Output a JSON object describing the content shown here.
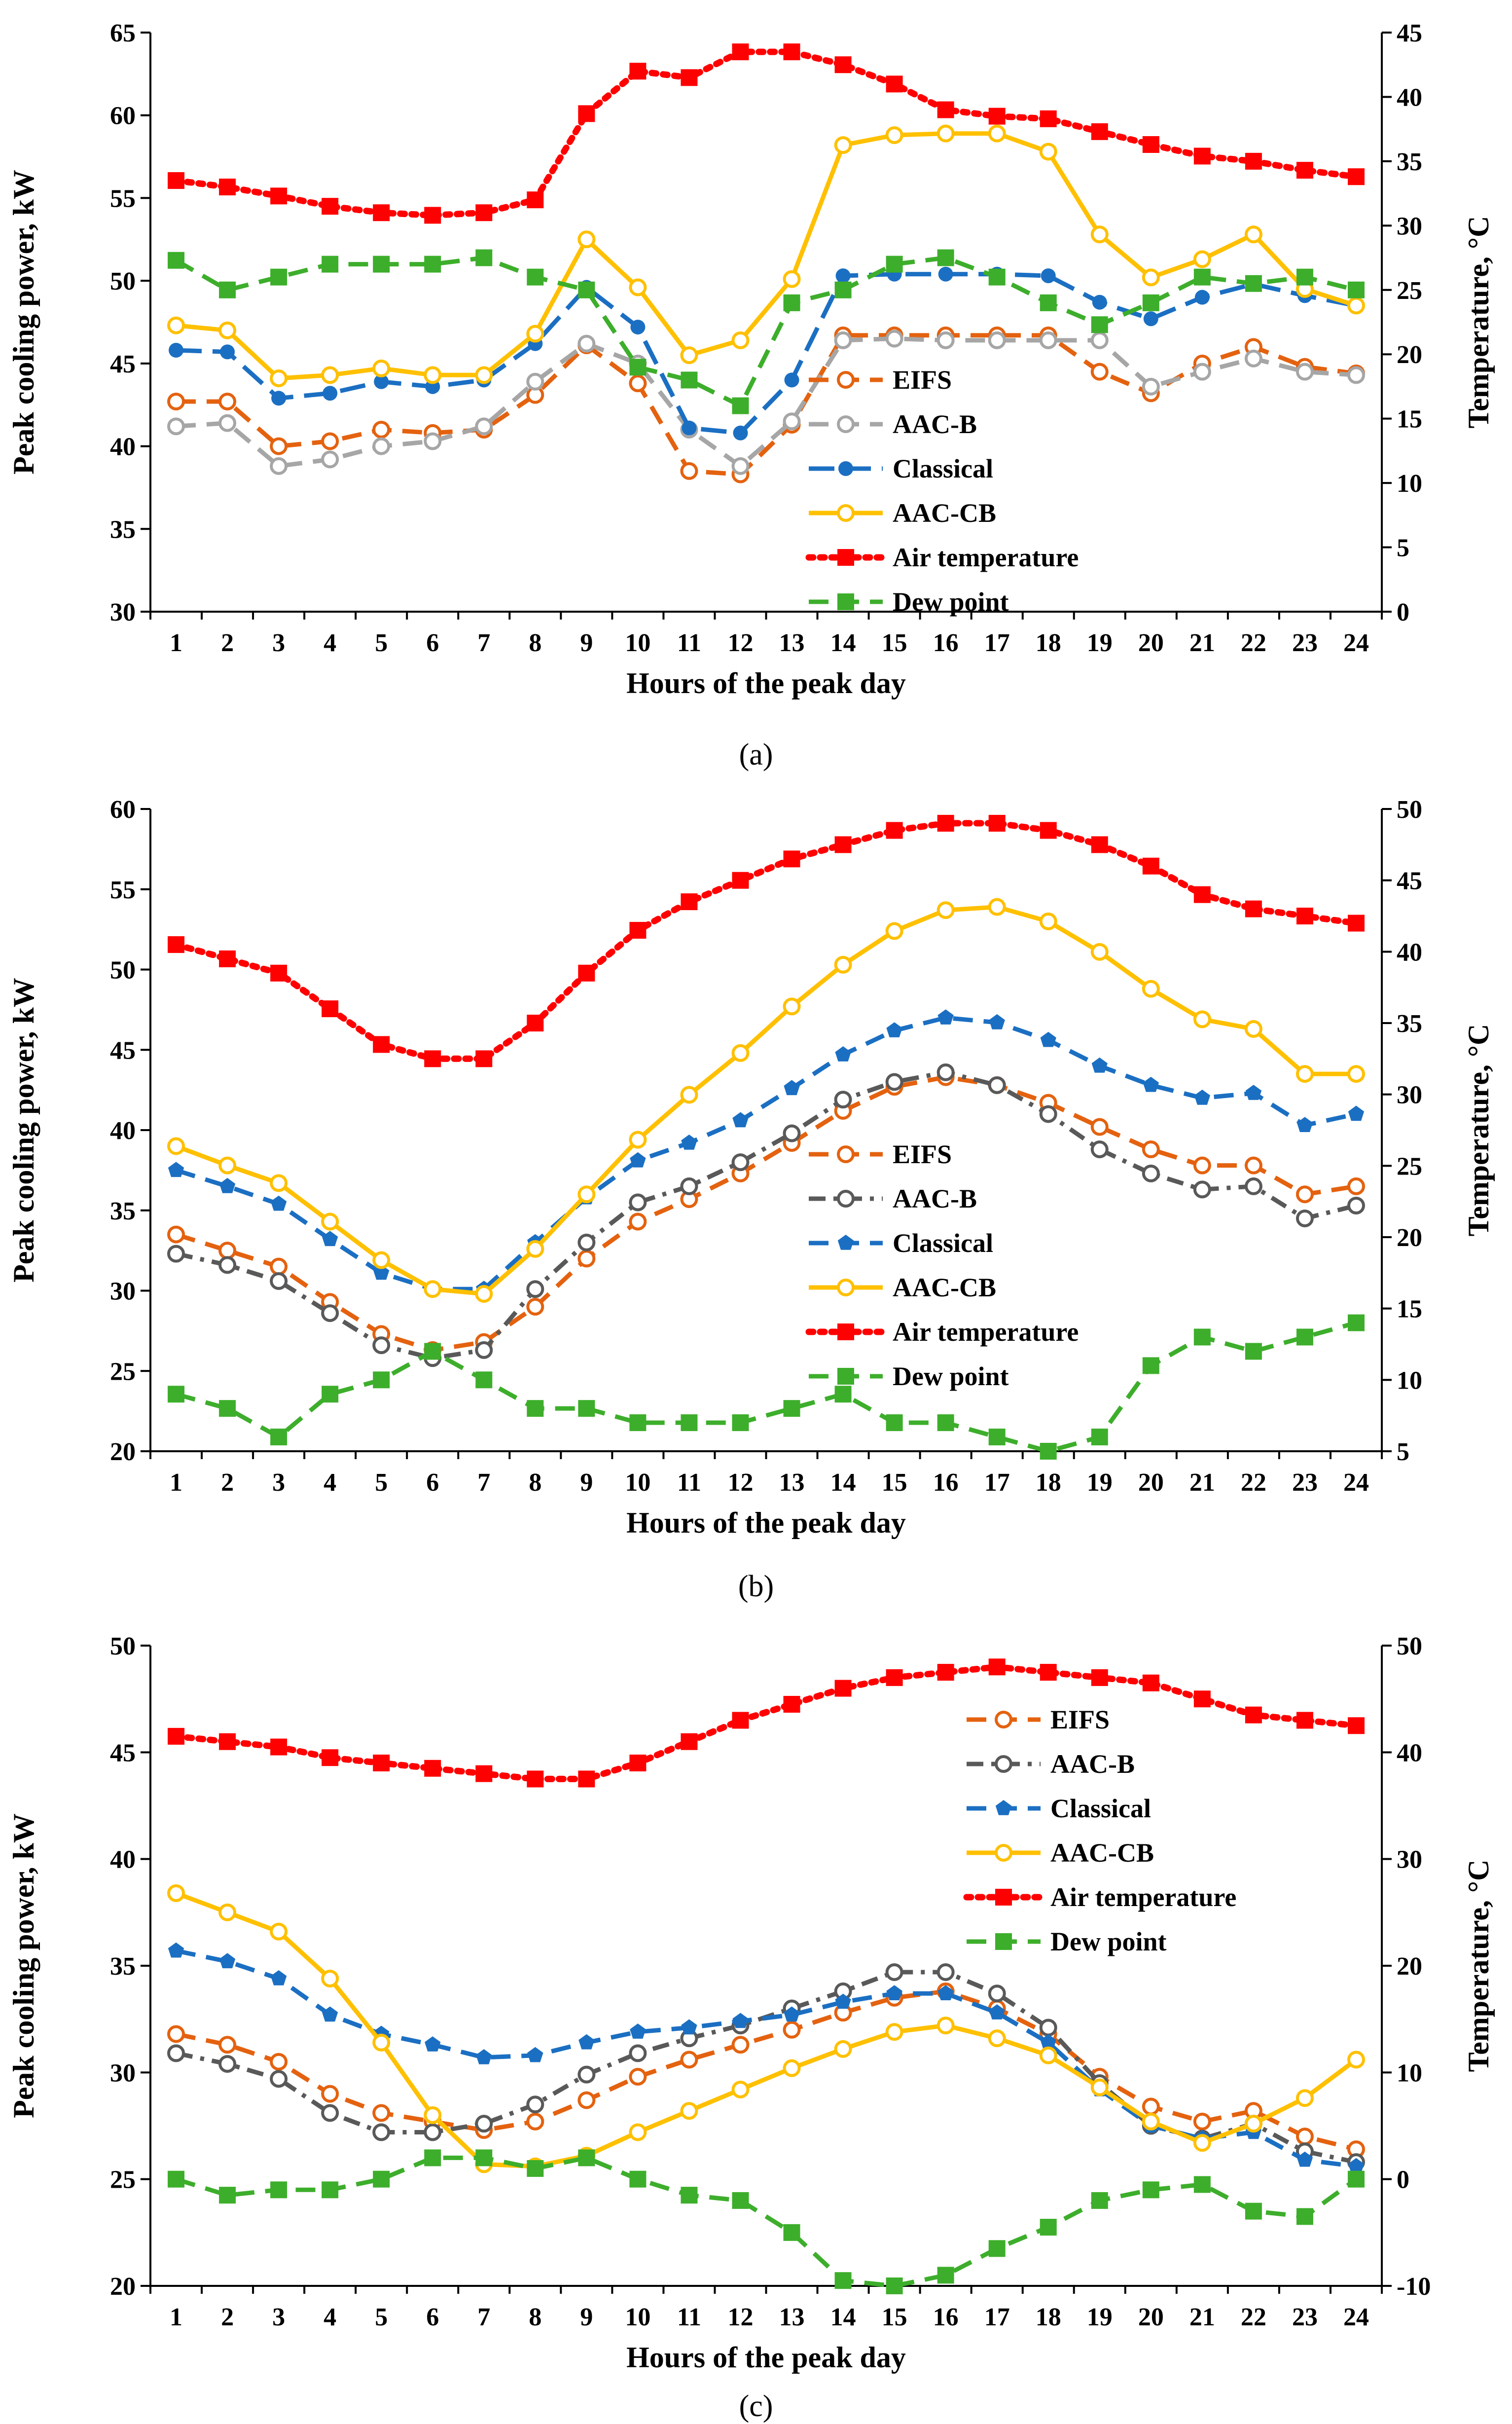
{
  "chart_data": [
    {
      "type": "line",
      "panel_label": "(a)",
      "x": [
        1,
        2,
        3,
        4,
        5,
        6,
        7,
        8,
        9,
        10,
        11,
        12,
        13,
        14,
        15,
        16,
        17,
        18,
        19,
        20,
        21,
        22,
        23,
        24
      ],
      "xlabel": "Hours of the peak day",
      "ylabel": "Peak cooling power, kW",
      "y2label": "Temperature, °C",
      "ylim": [
        30,
        65
      ],
      "y2lim": [
        0,
        45
      ],
      "yticks": [
        30,
        35,
        40,
        45,
        50,
        55,
        60,
        65
      ],
      "y2ticks": [
        0,
        5,
        10,
        15,
        20,
        25,
        30,
        35,
        40,
        45
      ],
      "grid": false,
      "legend": "center-right",
      "series": [
        {
          "name": "EIFS",
          "axis": "left",
          "color": "#E4620F",
          "dash": "dash",
          "marker": "circle-open",
          "values": [
            42.7,
            42.7,
            40.0,
            40.3,
            41.0,
            40.8,
            41.0,
            43.1,
            46.1,
            43.8,
            38.5,
            38.3,
            41.3,
            46.7,
            46.7,
            46.7,
            46.7,
            46.7,
            44.5,
            43.2,
            45.0,
            46.0,
            44.8,
            44.4
          ]
        },
        {
          "name": "AAC-B",
          "axis": "left",
          "color": "#A6A6A6",
          "dash": "dash",
          "marker": "circle-open",
          "values": [
            41.2,
            41.4,
            38.8,
            39.2,
            40.0,
            40.3,
            41.2,
            43.9,
            46.2,
            45.0,
            41.0,
            38.8,
            41.5,
            46.4,
            46.5,
            46.4,
            46.4,
            46.4,
            46.4,
            43.6,
            44.5,
            45.3,
            44.5,
            44.3
          ]
        },
        {
          "name": "Classical",
          "axis": "left",
          "color": "#1B6FC2",
          "dash": "longdash",
          "marker": "circle-filled",
          "values": [
            45.8,
            45.7,
            42.9,
            43.2,
            43.9,
            43.6,
            44.0,
            46.2,
            49.6,
            47.2,
            41.1,
            40.8,
            44.0,
            50.3,
            50.4,
            50.4,
            50.4,
            50.3,
            48.7,
            47.7,
            49.0,
            49.8,
            49.1,
            48.5
          ]
        },
        {
          "name": "AAC-CB",
          "axis": "left",
          "color": "#FFC000",
          "dash": "solid",
          "marker": "circle-open",
          "values": [
            47.3,
            47.0,
            44.1,
            44.3,
            44.7,
            44.3,
            44.3,
            46.8,
            52.5,
            49.6,
            45.5,
            46.4,
            50.1,
            58.2,
            58.8,
            58.9,
            58.9,
            57.8,
            52.8,
            50.2,
            51.3,
            52.8,
            49.5,
            48.5
          ]
        },
        {
          "name": "Air temperature",
          "axis": "right",
          "color": "#FF0000",
          "dash": "dot",
          "marker": "square",
          "values": [
            33.5,
            33.0,
            32.3,
            31.5,
            31.0,
            30.8,
            31.0,
            32.0,
            38.7,
            42.0,
            41.5,
            43.5,
            43.5,
            42.5,
            41.0,
            39.0,
            38.5,
            38.3,
            37.3,
            36.3,
            35.4,
            35.0,
            34.3,
            33.8
          ]
        },
        {
          "name": "Dew point",
          "axis": "right",
          "color": "#3DAE2B",
          "dash": "dash",
          "marker": "square",
          "values": [
            27.3,
            25.0,
            26.0,
            27.0,
            27.0,
            27.0,
            27.5,
            26.0,
            25.0,
            19.0,
            18.0,
            16.0,
            24.0,
            25.0,
            27.0,
            27.5,
            26.0,
            24.0,
            22.3,
            24.0,
            26.0,
            25.5,
            26.0,
            25.0
          ]
        }
      ]
    },
    {
      "type": "line",
      "panel_label": "(b)",
      "x": [
        1,
        2,
        3,
        4,
        5,
        6,
        7,
        8,
        9,
        10,
        11,
        12,
        13,
        14,
        15,
        16,
        17,
        18,
        19,
        20,
        21,
        22,
        23,
        24
      ],
      "xlabel": "Hours of the peak day",
      "ylabel": "Peak cooling power, kW",
      "y2label": "Temperature, °C",
      "ylim": [
        20,
        60
      ],
      "y2lim": [
        5,
        50
      ],
      "yticks": [
        20,
        25,
        30,
        35,
        40,
        45,
        50,
        55,
        60
      ],
      "y2ticks": [
        5,
        10,
        15,
        20,
        25,
        30,
        35,
        40,
        45,
        50
      ],
      "grid": false,
      "legend": "center-right",
      "series": [
        {
          "name": "EIFS",
          "axis": "left",
          "color": "#E4620F",
          "dash": "dash",
          "marker": "circle-open",
          "values": [
            33.5,
            32.5,
            31.5,
            29.3,
            27.3,
            26.3,
            26.8,
            29.0,
            32.0,
            34.3,
            35.7,
            37.3,
            39.2,
            41.2,
            42.7,
            43.3,
            42.8,
            41.7,
            40.2,
            38.8,
            37.8,
            37.8,
            36.0,
            36.5
          ]
        },
        {
          "name": "AAC-B",
          "axis": "left",
          "color": "#595959",
          "dash": "dashdot",
          "marker": "circle-open",
          "values": [
            32.3,
            31.6,
            30.6,
            28.6,
            26.6,
            25.8,
            26.3,
            30.1,
            33.0,
            35.5,
            36.5,
            38.0,
            39.8,
            41.9,
            43.0,
            43.6,
            42.8,
            41.0,
            38.8,
            37.3,
            36.3,
            36.5,
            34.5,
            35.3
          ]
        },
        {
          "name": "Classical",
          "axis": "left",
          "color": "#1B6FC2",
          "dash": "dash",
          "marker": "pentagon",
          "values": [
            37.5,
            36.5,
            35.4,
            33.2,
            31.1,
            30.1,
            30.1,
            33.0,
            35.8,
            38.1,
            39.2,
            40.6,
            42.6,
            44.7,
            46.2,
            47.0,
            46.7,
            45.6,
            44.0,
            42.8,
            42.0,
            42.3,
            40.3,
            41.0
          ]
        },
        {
          "name": "AAC-CB",
          "axis": "left",
          "color": "#FFC000",
          "dash": "solid",
          "marker": "circle-open",
          "values": [
            39.0,
            37.8,
            36.7,
            34.3,
            31.9,
            30.1,
            29.8,
            32.6,
            36.0,
            39.4,
            42.2,
            44.8,
            47.7,
            50.3,
            52.4,
            53.7,
            53.9,
            53.0,
            51.1,
            48.8,
            46.9,
            46.3,
            43.5,
            43.5
          ]
        },
        {
          "name": "Air temperature",
          "axis": "right",
          "color": "#FF0000",
          "dash": "dot",
          "marker": "square",
          "values": [
            40.5,
            39.5,
            38.5,
            36.0,
            33.5,
            32.5,
            32.5,
            35.0,
            38.5,
            41.5,
            43.5,
            45.0,
            46.5,
            47.5,
            48.5,
            49.0,
            49.0,
            48.5,
            47.5,
            46.0,
            44.0,
            43.0,
            42.5,
            42.0
          ]
        },
        {
          "name": "Dew point",
          "axis": "right",
          "color": "#3DAE2B",
          "dash": "dash",
          "marker": "square",
          "values": [
            9.0,
            8.0,
            6.0,
            9.0,
            10.0,
            12.0,
            10.0,
            8.0,
            8.0,
            7.0,
            7.0,
            7.0,
            8.0,
            9.0,
            7.0,
            7.0,
            6.0,
            5.0,
            6.0,
            11.0,
            13.0,
            12.0,
            13.0,
            14.0
          ]
        }
      ]
    },
    {
      "type": "line",
      "panel_label": "(c)",
      "x": [
        1,
        2,
        3,
        4,
        5,
        6,
        7,
        8,
        9,
        10,
        11,
        12,
        13,
        14,
        15,
        16,
        17,
        18,
        19,
        20,
        21,
        22,
        23,
        24
      ],
      "xlabel": "Hours of the peak day",
      "ylabel": "Peak cooling power, kW",
      "y2label": "Temperature, °C",
      "ylim": [
        20,
        50
      ],
      "y2lim": [
        -10,
        50
      ],
      "yticks": [
        20,
        25,
        30,
        35,
        40,
        45,
        50
      ],
      "y2ticks": [
        -10,
        0,
        10,
        20,
        30,
        40,
        50
      ],
      "grid": false,
      "legend": "top-right",
      "series": [
        {
          "name": "EIFS",
          "axis": "left",
          "color": "#E4620F",
          "dash": "dash",
          "marker": "circle-open",
          "values": [
            31.8,
            31.3,
            30.5,
            29.0,
            28.1,
            27.7,
            27.3,
            27.7,
            28.7,
            29.8,
            30.6,
            31.3,
            32.0,
            32.8,
            33.5,
            33.8,
            33.0,
            31.8,
            29.8,
            28.4,
            27.7,
            28.2,
            27.0,
            26.4
          ]
        },
        {
          "name": "AAC-B",
          "axis": "left",
          "color": "#595959",
          "dash": "dashdot",
          "marker": "circle-open",
          "values": [
            30.9,
            30.4,
            29.7,
            28.1,
            27.2,
            27.2,
            27.6,
            28.5,
            29.9,
            30.9,
            31.6,
            32.2,
            33.0,
            33.8,
            34.7,
            34.7,
            33.7,
            32.1,
            29.5,
            27.5,
            26.9,
            27.6,
            26.3,
            25.8
          ]
        },
        {
          "name": "Classical",
          "axis": "left",
          "color": "#1B6FC2",
          "dash": "dash",
          "marker": "pentagon",
          "values": [
            35.7,
            35.2,
            34.4,
            32.7,
            31.8,
            31.3,
            30.7,
            30.8,
            31.4,
            31.9,
            32.1,
            32.4,
            32.7,
            33.3,
            33.7,
            33.7,
            32.8,
            31.4,
            29.2,
            27.5,
            26.9,
            27.2,
            25.9,
            25.6
          ]
        },
        {
          "name": "AAC-CB",
          "axis": "left",
          "color": "#FFC000",
          "dash": "solid",
          "marker": "circle-open",
          "values": [
            38.4,
            37.5,
            36.6,
            34.4,
            31.4,
            28.0,
            25.7,
            25.6,
            26.1,
            27.2,
            28.2,
            29.2,
            30.2,
            31.1,
            31.9,
            32.2,
            31.6,
            30.8,
            29.3,
            27.7,
            26.7,
            27.6,
            28.8,
            30.6
          ]
        },
        {
          "name": "Air temperature",
          "axis": "right",
          "color": "#FF0000",
          "dash": "dot",
          "marker": "square",
          "values": [
            41.5,
            41.0,
            40.5,
            39.5,
            39.0,
            38.5,
            38.0,
            37.5,
            37.5,
            39.0,
            41.0,
            43.0,
            44.5,
            46.0,
            47.0,
            47.5,
            48.0,
            47.5,
            47.0,
            46.5,
            45.0,
            43.5,
            43.0,
            42.5
          ]
        },
        {
          "name": "Dew point",
          "axis": "right",
          "color": "#3DAE2B",
          "dash": "dash",
          "marker": "square",
          "values": [
            0.0,
            -1.5,
            -1.0,
            -1.0,
            0.0,
            2.0,
            2.0,
            1.0,
            2.0,
            0.0,
            -1.5,
            -2.0,
            -5.0,
            -9.5,
            -10.0,
            -9.0,
            -6.5,
            -4.5,
            -2.0,
            -1.0,
            -0.5,
            -3.0,
            -3.5,
            0.0
          ]
        }
      ]
    }
  ]
}
